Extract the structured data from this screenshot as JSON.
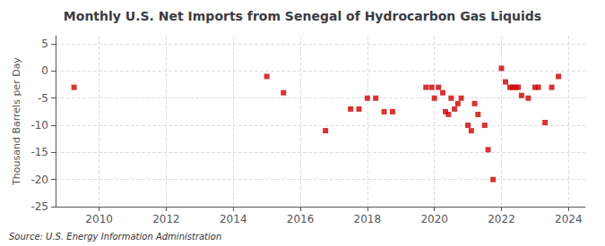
{
  "chart_data": {
    "type": "scatter",
    "title": "Monthly U.S. Net Imports from Senegal of Hydrocarbon Gas Liquids",
    "ylabel": "Thousand Barrels per Day",
    "annotation": "Source: U.S. Energy Information Administration",
    "color": "#cc0000",
    "marker": "square",
    "grid": true,
    "xlim": [
      2008.7,
      2024.5
    ],
    "xticks": [
      2010,
      2012,
      2014,
      2016,
      2018,
      2020,
      2022,
      2024
    ],
    "ylim": [
      -25,
      6.5
    ],
    "yticks": [
      5,
      0,
      -5,
      -10,
      -15,
      -20,
      -25
    ],
    "x": [
      2009.25,
      2015.0,
      2015.5,
      2016.75,
      2017.5,
      2017.75,
      2018.0,
      2018.25,
      2018.5,
      2018.75,
      2019.75,
      2019.92,
      2020.0,
      2020.12,
      2020.25,
      2020.33,
      2020.42,
      2020.5,
      2020.6,
      2020.7,
      2020.8,
      2021.0,
      2021.1,
      2021.2,
      2021.3,
      2021.5,
      2021.6,
      2021.75,
      2022.0,
      2022.12,
      2022.25,
      2022.33,
      2022.42,
      2022.5,
      2022.6,
      2022.8,
      2023.0,
      2023.1,
      2023.3,
      2023.5,
      2023.7
    ],
    "values": [
      -3,
      -1,
      -4,
      -11,
      -7,
      -7,
      -5,
      -5,
      -7.5,
      -7.5,
      -3,
      -3,
      -5,
      -3,
      -4,
      -7.5,
      -8,
      -5,
      -7,
      -6,
      -5,
      -10,
      -11,
      -6,
      -8,
      -10,
      -14.5,
      -20,
      0.5,
      -2,
      -3,
      -3,
      -3,
      -3,
      -4.5,
      -5,
      -3,
      -3,
      -9.5,
      -3,
      -1
    ]
  }
}
